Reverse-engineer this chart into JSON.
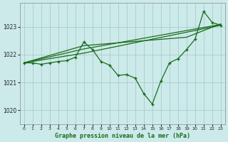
{
  "title": "Graphe pression niveau de la mer (hPa)",
  "background_color": "#cceaea",
  "grid_color": "#aacccc",
  "line_color": "#1a6b1a",
  "xlim": [
    -0.5,
    23.5
  ],
  "ylim": [
    1019.5,
    1023.85
  ],
  "xticks": [
    0,
    1,
    2,
    3,
    4,
    5,
    6,
    7,
    8,
    9,
    10,
    11,
    12,
    13,
    14,
    15,
    16,
    17,
    18,
    19,
    20,
    21,
    22,
    23
  ],
  "yticks": [
    1020,
    1021,
    1022,
    1023
  ],
  "main_series": [
    1021.7,
    1021.7,
    1021.65,
    1021.7,
    1021.75,
    1021.78,
    1021.9,
    1022.45,
    1022.18,
    1021.75,
    1021.62,
    1021.25,
    1021.28,
    1021.15,
    1020.6,
    1020.22,
    1021.05,
    1021.7,
    1021.85,
    1022.18,
    1022.55,
    1023.55,
    1023.15,
    1023.05
  ],
  "straight_lines": [
    [
      [
        0,
        1021.7
      ],
      [
        7,
        1022.05
      ],
      [
        23,
        1023.05
      ]
    ],
    [
      [
        0,
        1021.7
      ],
      [
        7,
        1022.2
      ],
      [
        23,
        1023.08
      ]
    ],
    [
      [
        0,
        1021.7
      ],
      [
        7,
        1022.32
      ],
      [
        19,
        1022.62
      ],
      [
        23,
        1023.1
      ]
    ]
  ]
}
